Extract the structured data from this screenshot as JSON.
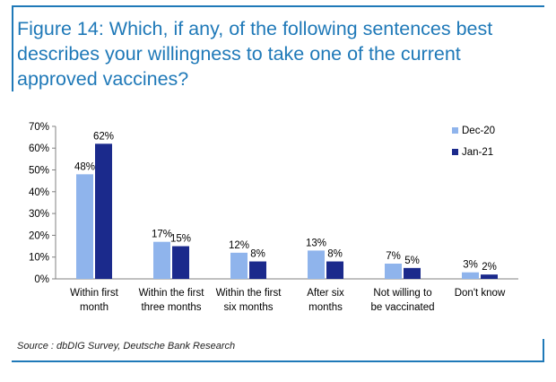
{
  "title_lines": [
    "Figure 14: Which, if any, of the following sentences best",
    "describes your willingness to take one of the current",
    "approved vaccines?"
  ],
  "source": "Source : dbDIG Survey, Deutsche Bank Research",
  "colors": {
    "accent": "#1f79b8",
    "dec20": "#8fb4ec",
    "jan21": "#1b2a8c"
  },
  "chart_data": {
    "type": "bar",
    "title": "",
    "xlabel": "",
    "ylabel": "",
    "ylim": [
      0,
      70
    ],
    "yticks": [
      "0%",
      "10%",
      "20%",
      "30%",
      "40%",
      "50%",
      "60%",
      "70%"
    ],
    "categories": [
      [
        "Within first",
        "month"
      ],
      [
        "Within the first",
        "three months"
      ],
      [
        "Within the first",
        "six months"
      ],
      [
        "After six",
        "months"
      ],
      [
        "Not willing to",
        "be vaccinated"
      ],
      [
        "Don't know"
      ]
    ],
    "series": [
      {
        "name": "Dec-20",
        "values": [
          48,
          17,
          12,
          13,
          7,
          3
        ],
        "labels": [
          "48%",
          "17%",
          "12%",
          "13%",
          "7%",
          "3%"
        ]
      },
      {
        "name": "Jan-21",
        "values": [
          62,
          15,
          8,
          8,
          5,
          2
        ],
        "labels": [
          "62%",
          "15%",
          "8%",
          "8%",
          "5%",
          "2%"
        ]
      }
    ],
    "legend": "right",
    "grid": false
  }
}
